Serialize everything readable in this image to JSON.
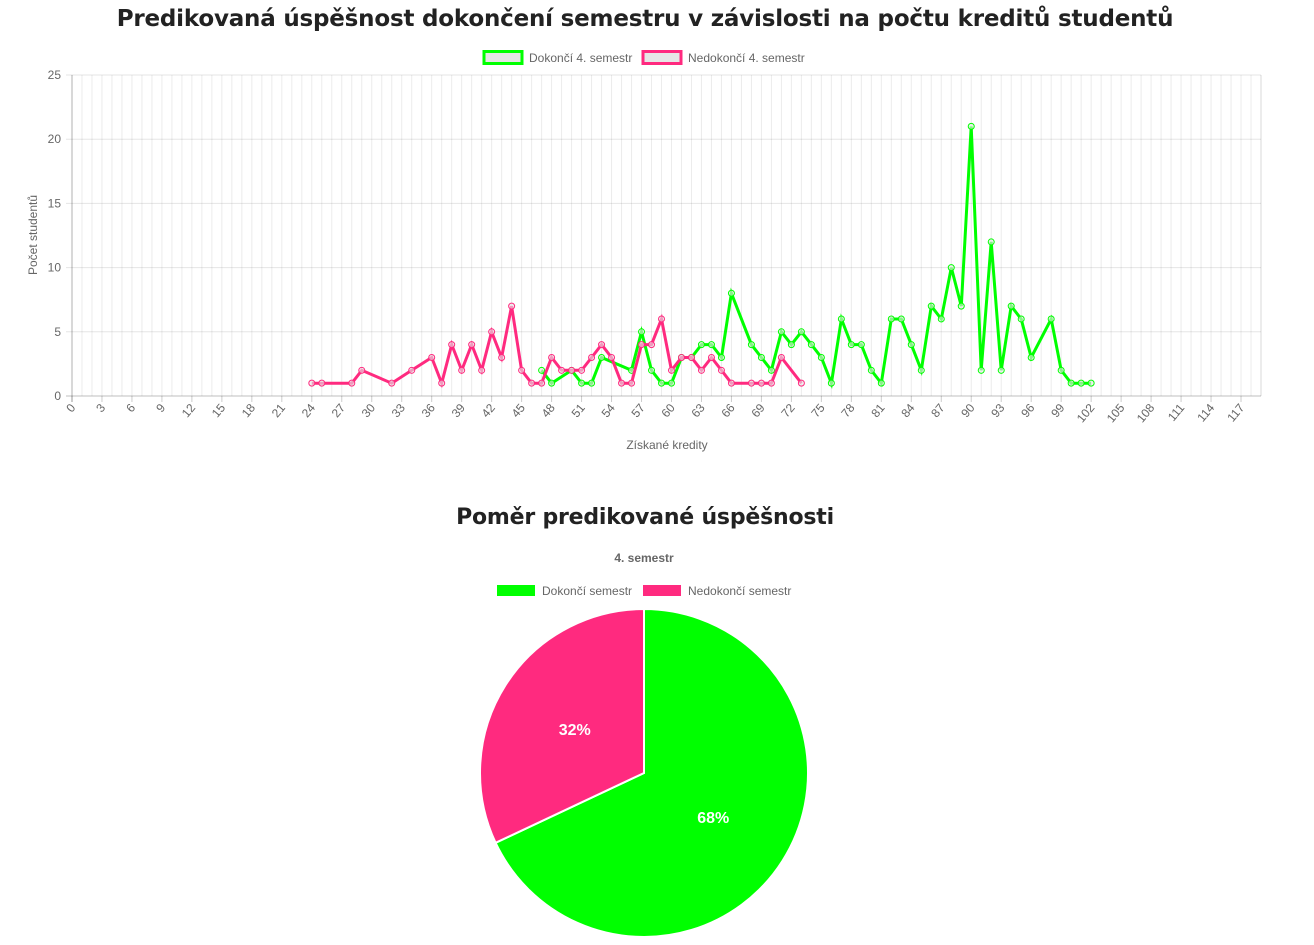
{
  "line_chart": {
    "title": "Predikovaná úspěšnost dokončení semestru v závislosti na počtu kreditů studentů",
    "legend": [
      {
        "label": "Dokončí 4. semestr",
        "color": "#00ff00"
      },
      {
        "label": "Nedokončí 4. semestr",
        "color": "#ff2a7f"
      }
    ]
  },
  "pie_chart": {
    "title": "Poměr predikované úspěšnosti",
    "subtitle": "4. semestr",
    "legend": [
      {
        "label": "Dokončí semestr",
        "color": "#00ff00"
      },
      {
        "label": "Nedokončí semestr",
        "color": "#ff2a7f"
      }
    ]
  },
  "chart_data": [
    {
      "type": "line",
      "title": "Predikovaná úspěšnost dokončení semestru v závislosti na počtu kreditů studentů",
      "xlabel": "Získané kredity",
      "ylabel": "Počet studentů",
      "xlim": [
        0,
        119
      ],
      "ylim": [
        0,
        25
      ],
      "xticks": [
        0,
        3,
        6,
        9,
        12,
        15,
        18,
        21,
        24,
        27,
        30,
        33,
        36,
        39,
        42,
        45,
        48,
        51,
        54,
        57,
        60,
        63,
        66,
        69,
        72,
        75,
        78,
        81,
        84,
        87,
        90,
        93,
        96,
        99,
        102,
        105,
        108,
        111,
        114,
        117
      ],
      "yticks": [
        0,
        5,
        10,
        15,
        20,
        25
      ],
      "grid": true,
      "legend_position": "top-center",
      "series": [
        {
          "name": "Dokončí 4. semestr",
          "color": "#00ff00",
          "points": [
            [
              47,
              2
            ],
            [
              48,
              1
            ],
            [
              50,
              2
            ],
            [
              51,
              1
            ],
            [
              52,
              1
            ],
            [
              53,
              3
            ],
            [
              56,
              2
            ],
            [
              57,
              5
            ],
            [
              58,
              2
            ],
            [
              59,
              1
            ],
            [
              60,
              1
            ],
            [
              61,
              3
            ],
            [
              62,
              3
            ],
            [
              63,
              4
            ],
            [
              64,
              4
            ],
            [
              65,
              3
            ],
            [
              66,
              8
            ],
            [
              68,
              4
            ],
            [
              69,
              3
            ],
            [
              70,
              2
            ],
            [
              71,
              5
            ],
            [
              72,
              4
            ],
            [
              73,
              5
            ],
            [
              74,
              4
            ],
            [
              75,
              3
            ],
            [
              76,
              1
            ],
            [
              77,
              6
            ],
            [
              78,
              4
            ],
            [
              79,
              4
            ],
            [
              80,
              2
            ],
            [
              81,
              1
            ],
            [
              82,
              6
            ],
            [
              83,
              6
            ],
            [
              84,
              4
            ],
            [
              85,
              2
            ],
            [
              86,
              7
            ],
            [
              87,
              6
            ],
            [
              88,
              10
            ],
            [
              89,
              7
            ],
            [
              90,
              21
            ],
            [
              91,
              2
            ],
            [
              92,
              12
            ],
            [
              93,
              2
            ],
            [
              94,
              7
            ],
            [
              95,
              6
            ],
            [
              96,
              3
            ],
            [
              98,
              6
            ],
            [
              99,
              2
            ],
            [
              100,
              1
            ],
            [
              101,
              1
            ],
            [
              102,
              1
            ]
          ]
        },
        {
          "name": "Nedokončí 4. semestr",
          "color": "#ff2a7f",
          "points": [
            [
              24,
              1
            ],
            [
              25,
              1
            ],
            [
              28,
              1
            ],
            [
              29,
              2
            ],
            [
              32,
              1
            ],
            [
              34,
              2
            ],
            [
              36,
              3
            ],
            [
              37,
              1
            ],
            [
              38,
              4
            ],
            [
              39,
              2
            ],
            [
              40,
              4
            ],
            [
              41,
              2
            ],
            [
              42,
              5
            ],
            [
              43,
              3
            ],
            [
              44,
              7
            ],
            [
              45,
              2
            ],
            [
              46,
              1
            ],
            [
              47,
              1
            ],
            [
              48,
              3
            ],
            [
              49,
              2
            ],
            [
              50,
              2
            ],
            [
              51,
              2
            ],
            [
              52,
              3
            ],
            [
              53,
              4
            ],
            [
              54,
              3
            ],
            [
              55,
              1
            ],
            [
              56,
              1
            ],
            [
              57,
              4
            ],
            [
              58,
              4
            ],
            [
              59,
              6
            ],
            [
              60,
              2
            ],
            [
              61,
              3
            ],
            [
              62,
              3
            ],
            [
              63,
              2
            ],
            [
              64,
              3
            ],
            [
              65,
              2
            ],
            [
              66,
              1
            ],
            [
              68,
              1
            ],
            [
              69,
              1
            ],
            [
              70,
              1
            ],
            [
              71,
              3
            ],
            [
              73,
              1
            ]
          ]
        }
      ]
    },
    {
      "type": "pie",
      "title": "Poměr predikované úspěšnosti",
      "subtitle": "4. semestr",
      "legend_position": "top-center",
      "labels": [
        "Dokončí semestr",
        "Nedokončí semestr"
      ],
      "values": [
        68,
        32
      ],
      "value_labels": [
        "68%",
        "32%"
      ],
      "colors": [
        "#00ff00",
        "#ff2a7f"
      ]
    }
  ]
}
